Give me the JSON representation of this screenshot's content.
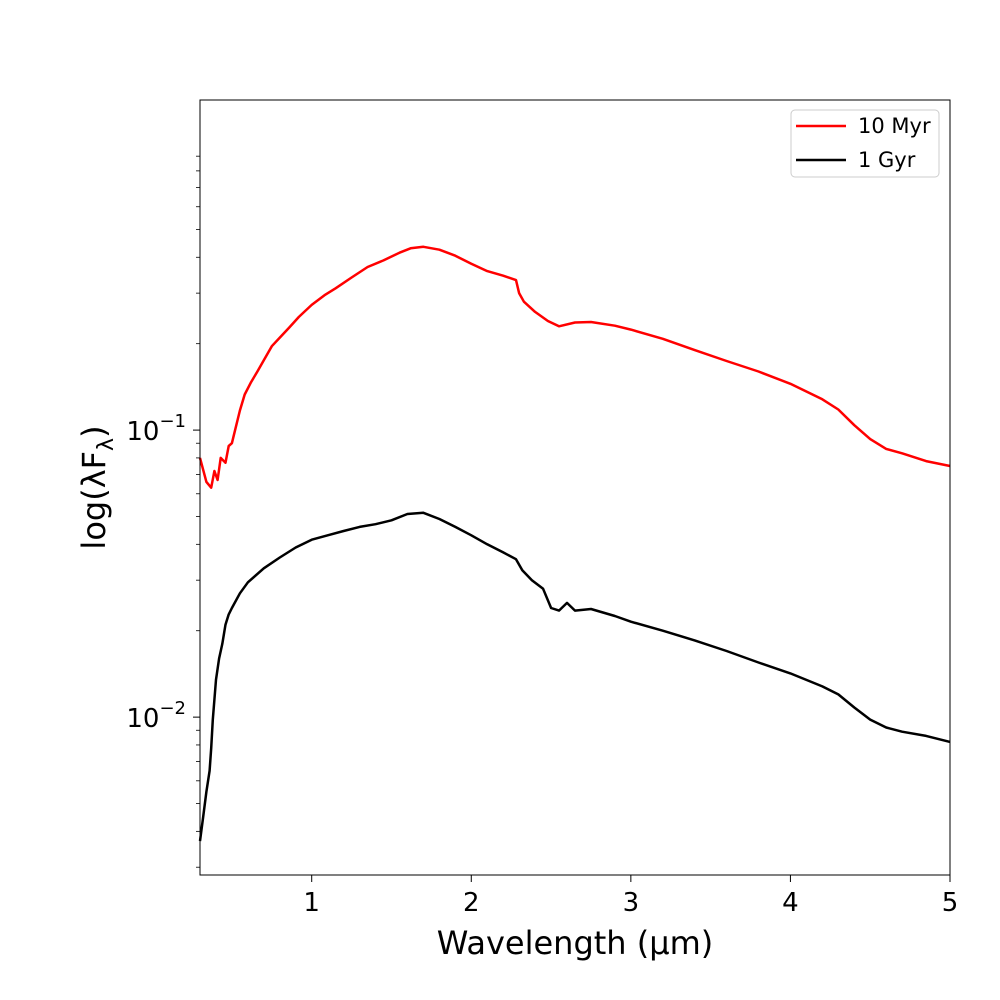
{
  "chart_data": {
    "type": "line",
    "title": "",
    "xlabel": "Wavelength (μm)",
    "ylabel": "log(λF_λ)",
    "xlim": [
      0.3,
      5.0
    ],
    "ylim_log10": [
      -2.55,
      0.15
    ],
    "yscale": "log",
    "x_ticks": [
      {
        "value": 1,
        "label": "1"
      },
      {
        "value": 2,
        "label": "2"
      },
      {
        "value": 3,
        "label": "3"
      },
      {
        "value": 4,
        "label": "4"
      },
      {
        "value": 5,
        "label": "5"
      }
    ],
    "y_ticks": [
      {
        "value": 0.1,
        "base": "10",
        "exp": "−1"
      },
      {
        "value": 0.01,
        "base": "10",
        "exp": "−2"
      }
    ],
    "legend_position": "top-right",
    "grid": false,
    "series": [
      {
        "name": "10 Myr",
        "color": "#ff0000",
        "points": [
          [
            0.3,
            0.08
          ],
          [
            0.34,
            0.066
          ],
          [
            0.37,
            0.063
          ],
          [
            0.39,
            0.072
          ],
          [
            0.41,
            0.067
          ],
          [
            0.43,
            0.08
          ],
          [
            0.46,
            0.077
          ],
          [
            0.48,
            0.088
          ],
          [
            0.5,
            0.09
          ],
          [
            0.52,
            0.1
          ],
          [
            0.55,
            0.117
          ],
          [
            0.58,
            0.133
          ],
          [
            0.62,
            0.147
          ],
          [
            0.66,
            0.16
          ],
          [
            0.7,
            0.175
          ],
          [
            0.75,
            0.196
          ],
          [
            0.8,
            0.21
          ],
          [
            0.86,
            0.228
          ],
          [
            0.92,
            0.248
          ],
          [
            1.0,
            0.273
          ],
          [
            1.08,
            0.295
          ],
          [
            1.15,
            0.312
          ],
          [
            1.25,
            0.34
          ],
          [
            1.35,
            0.37
          ],
          [
            1.45,
            0.39
          ],
          [
            1.55,
            0.415
          ],
          [
            1.62,
            0.43
          ],
          [
            1.7,
            0.435
          ],
          [
            1.8,
            0.425
          ],
          [
            1.9,
            0.405
          ],
          [
            2.0,
            0.38
          ],
          [
            2.1,
            0.358
          ],
          [
            2.2,
            0.345
          ],
          [
            2.28,
            0.333
          ],
          [
            2.3,
            0.3
          ],
          [
            2.33,
            0.28
          ],
          [
            2.4,
            0.258
          ],
          [
            2.48,
            0.24
          ],
          [
            2.55,
            0.23
          ],
          [
            2.65,
            0.237
          ],
          [
            2.75,
            0.238
          ],
          [
            2.9,
            0.231
          ],
          [
            3.0,
            0.224
          ],
          [
            3.2,
            0.208
          ],
          [
            3.4,
            0.19
          ],
          [
            3.6,
            0.174
          ],
          [
            3.8,
            0.16
          ],
          [
            4.0,
            0.145
          ],
          [
            4.2,
            0.128
          ],
          [
            4.3,
            0.118
          ],
          [
            4.4,
            0.104
          ],
          [
            4.5,
            0.093
          ],
          [
            4.6,
            0.086
          ],
          [
            4.7,
            0.083
          ],
          [
            4.85,
            0.078
          ],
          [
            5.0,
            0.075
          ]
        ]
      },
      {
        "name": "1 Gyr",
        "color": "#000000",
        "points": [
          [
            0.3,
            0.0037
          ],
          [
            0.32,
            0.0045
          ],
          [
            0.34,
            0.0055
          ],
          [
            0.36,
            0.0065
          ],
          [
            0.37,
            0.0078
          ],
          [
            0.38,
            0.0098
          ],
          [
            0.39,
            0.0115
          ],
          [
            0.4,
            0.0135
          ],
          [
            0.42,
            0.016
          ],
          [
            0.44,
            0.018
          ],
          [
            0.46,
            0.021
          ],
          [
            0.48,
            0.0228
          ],
          [
            0.5,
            0.024
          ],
          [
            0.55,
            0.027
          ],
          [
            0.6,
            0.0295
          ],
          [
            0.7,
            0.033
          ],
          [
            0.8,
            0.036
          ],
          [
            0.9,
            0.039
          ],
          [
            1.0,
            0.0415
          ],
          [
            1.1,
            0.043
          ],
          [
            1.2,
            0.0445
          ],
          [
            1.3,
            0.046
          ],
          [
            1.4,
            0.047
          ],
          [
            1.5,
            0.0485
          ],
          [
            1.6,
            0.051
          ],
          [
            1.7,
            0.0515
          ],
          [
            1.8,
            0.049
          ],
          [
            1.9,
            0.046
          ],
          [
            2.0,
            0.043
          ],
          [
            2.1,
            0.04
          ],
          [
            2.2,
            0.0375
          ],
          [
            2.28,
            0.0355
          ],
          [
            2.32,
            0.0325
          ],
          [
            2.38,
            0.03
          ],
          [
            2.45,
            0.028
          ],
          [
            2.5,
            0.024
          ],
          [
            2.55,
            0.0235
          ],
          [
            2.6,
            0.025
          ],
          [
            2.65,
            0.0235
          ],
          [
            2.75,
            0.0238
          ],
          [
            2.9,
            0.0225
          ],
          [
            3.0,
            0.0215
          ],
          [
            3.2,
            0.02
          ],
          [
            3.4,
            0.0185
          ],
          [
            3.6,
            0.017
          ],
          [
            3.8,
            0.0155
          ],
          [
            4.0,
            0.0142
          ],
          [
            4.2,
            0.0128
          ],
          [
            4.3,
            0.012
          ],
          [
            4.4,
            0.0108
          ],
          [
            4.5,
            0.0098
          ],
          [
            4.6,
            0.0092
          ],
          [
            4.7,
            0.0089
          ],
          [
            4.85,
            0.0086
          ],
          [
            5.0,
            0.0082
          ]
        ]
      }
    ]
  }
}
